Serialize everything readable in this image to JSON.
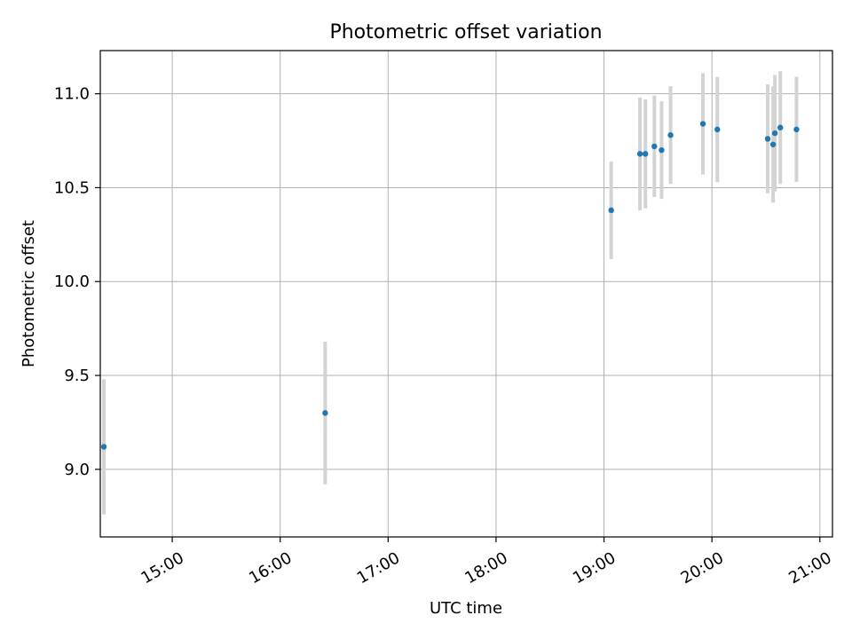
{
  "chart_data": {
    "type": "scatter",
    "title": "Photometric offset variation",
    "xlabel": "UTC time",
    "ylabel": "Photometric offset",
    "x_axis_type": "time",
    "xlim": [
      "14:20",
      "21:07"
    ],
    "ylim": [
      8.64,
      11.23
    ],
    "x_ticks": [
      "15:00",
      "16:00",
      "17:00",
      "18:00",
      "19:00",
      "20:00",
      "21:00"
    ],
    "y_ticks": [
      9.0,
      9.5,
      10.0,
      10.5,
      11.0
    ],
    "y_tick_labels": [
      "9.0",
      "9.5",
      "10.0",
      "10.5",
      "11.0"
    ],
    "grid": true,
    "point_color": "#1f77b4",
    "errorbar_color": "#d3d3d3",
    "points": [
      {
        "x": "14:22",
        "y": 9.12,
        "yerr": 0.36
      },
      {
        "x": "16:25",
        "y": 9.3,
        "yerr": 0.38
      },
      {
        "x": "19:04",
        "y": 10.38,
        "yerr": 0.26
      },
      {
        "x": "19:20",
        "y": 10.68,
        "yerr": 0.3
      },
      {
        "x": "19:23",
        "y": 10.68,
        "yerr": 0.29
      },
      {
        "x": "19:28",
        "y": 10.72,
        "yerr": 0.27
      },
      {
        "x": "19:32",
        "y": 10.7,
        "yerr": 0.26
      },
      {
        "x": "19:37",
        "y": 10.78,
        "yerr": 0.26
      },
      {
        "x": "19:55",
        "y": 10.84,
        "yerr": 0.27
      },
      {
        "x": "20:03",
        "y": 10.81,
        "yerr": 0.28
      },
      {
        "x": "20:31",
        "y": 10.76,
        "yerr": 0.29
      },
      {
        "x": "20:34",
        "y": 10.73,
        "yerr": 0.31
      },
      {
        "x": "20:35",
        "y": 10.79,
        "yerr": 0.31
      },
      {
        "x": "20:38",
        "y": 10.82,
        "yerr": 0.3
      },
      {
        "x": "20:47",
        "y": 10.81,
        "yerr": 0.28
      }
    ]
  }
}
